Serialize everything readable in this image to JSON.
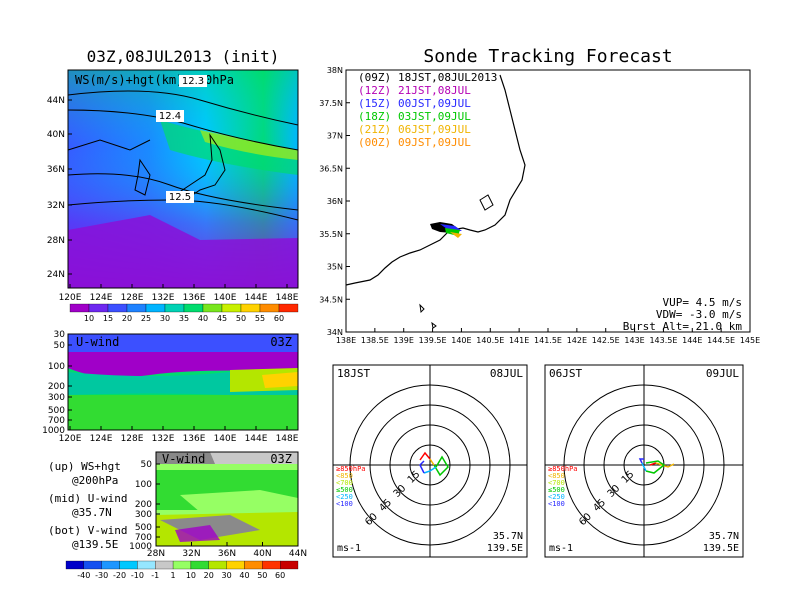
{
  "left_title": "03Z,08JUL2013 (init)",
  "right_title": "Sonde Tracking Forecast",
  "map_panel": {
    "label": "WS(m/s)+hgt(km)@200hPa",
    "x_ticks": [
      "120E",
      "124E",
      "128E",
      "132E",
      "136E",
      "140E",
      "144E",
      "148E"
    ],
    "y_ticks": [
      "44N",
      "40N",
      "36N",
      "32N",
      "28N",
      "24N"
    ],
    "contour_labels": [
      "12.3",
      "12.4",
      "12.5"
    ]
  },
  "ws_colorbar": {
    "labels": [
      "10",
      "15",
      "20",
      "25",
      "30",
      "35",
      "40",
      "45",
      "50",
      "55",
      "60"
    ],
    "colors": [
      "#a000c8",
      "#6e28f0",
      "#3c50ff",
      "#1e82ff",
      "#00b4ff",
      "#00d2b4",
      "#00dc6e",
      "#78e61e",
      "#c8f000",
      "#ffd200",
      "#ff8c00",
      "#ff2800"
    ]
  },
  "uwind_panel": {
    "label": "U-wind",
    "time": "03Z",
    "y_ticks": [
      "30",
      "50",
      "100",
      "200",
      "300",
      "500",
      "700",
      "1000"
    ],
    "x_ticks": [
      "120E",
      "124E",
      "128E",
      "132E",
      "136E",
      "140E",
      "144E",
      "148E"
    ]
  },
  "vwind_panel": {
    "label": "V-wind",
    "time": "03Z",
    "y_ticks": [
      "50",
      "100",
      "200",
      "300",
      "500",
      "700",
      "1000"
    ],
    "x_ticks": [
      "28N",
      "32N",
      "36N",
      "40N",
      "44N"
    ]
  },
  "side_notes": [
    {
      "line1": "(up)  WS+hgt",
      "line2": "@200hPa"
    },
    {
      "line1": "(mid) U-wind",
      "line2": "@35.7N"
    },
    {
      "line1": "(bot) V-wind",
      "line2": "@139.5E"
    }
  ],
  "wind_colorbar": {
    "labels": [
      "-40",
      "-30",
      "-20",
      "-10",
      "-1",
      "1",
      "10",
      "20",
      "30",
      "40",
      "50",
      "60"
    ],
    "colors": [
      "#0000c8",
      "#1450f0",
      "#1e96ff",
      "#00c8ff",
      "#96e6ff",
      "#c8c8c8",
      "#96ff64",
      "#32dc32",
      "#b4e600",
      "#ffd200",
      "#ff8c00",
      "#ff3200",
      "#c80000"
    ]
  },
  "track_map": {
    "lat_ticks": [
      "38N",
      "37.5N",
      "37N",
      "36.5N",
      "36N",
      "35.5N",
      "35N",
      "34.5N",
      "34N"
    ],
    "lon_ticks": [
      "138E",
      "138.5E",
      "139E",
      "139.5E",
      "140E",
      "140.5E",
      "141E",
      "141.5E",
      "142E",
      "142.5E",
      "143E",
      "143.5E",
      "144E",
      "144.5E",
      "145E"
    ],
    "legend": [
      {
        "code": "(09Z)",
        "time": "18JST,08JUL2013",
        "color": "#000000"
      },
      {
        "code": "(12Z)",
        "time": "21JST,08JUL",
        "color": "#b400b4"
      },
      {
        "code": "(15Z)",
        "time": "00JST,09JUL",
        "color": "#2828ff"
      },
      {
        "code": "(18Z)",
        "time": "03JST,09JUL",
        "color": "#00c800"
      },
      {
        "code": "(21Z)",
        "time": "06JST,09JUL",
        "color": "#f0b400"
      },
      {
        "code": "(00Z)",
        "time": "09JST,09JUL",
        "color": "#ff8c00"
      }
    ],
    "info": [
      "VUP= 4.5 m/s",
      "VDW= -3.0 m/s",
      "Burst Alt= 21.0 km"
    ]
  },
  "hodograph_left": {
    "time_left": "18JST",
    "date_right": "08JUL",
    "ring_labels": [
      "15",
      "30",
      "45",
      "60"
    ],
    "levels": [
      {
        "label": "≥850hPa",
        "color": "#ff0000"
      },
      {
        "label": "<850",
        "color": "#f0b400"
      },
      {
        "label": "<700",
        "color": "#b4e600"
      },
      {
        "label": "≤500",
        "color": "#00c800"
      },
      {
        "label": "<250",
        "color": "#00b4ff"
      },
      {
        "label": "<100",
        "color": "#2828ff"
      }
    ],
    "unit": "ms-1",
    "lat": "35.7N",
    "lon": "139.5E"
  },
  "hodograph_right": {
    "time_left": "06JST",
    "date_right": "09JUL",
    "ring_labels": [
      "15",
      "30",
      "45",
      "60"
    ],
    "unit": "ms-1",
    "lat": "35.7N",
    "lon": "139.5E"
  }
}
